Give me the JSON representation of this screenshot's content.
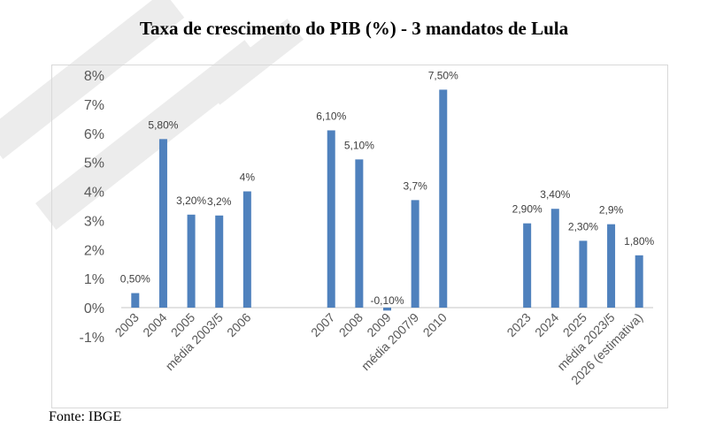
{
  "title": "Taxa de crescimento do PIB (%) - 3 mandatos de Lula",
  "source": "Fonte: IBGE",
  "chart_data": {
    "type": "bar",
    "title": "Taxa de crescimento do PIB (%) - 3 mandatos de Lula",
    "xlabel": "",
    "ylabel": "",
    "ylim": [
      -1,
      8
    ],
    "yticks": [
      "-1%",
      "0%",
      "1%",
      "2%",
      "3%",
      "4%",
      "5%",
      "6%",
      "7%",
      "8%"
    ],
    "grid": false,
    "color": "#4f81bd",
    "groups": [
      {
        "categories": [
          "2003",
          "2004",
          "2005",
          "média 2003/5",
          "2006"
        ],
        "values": [
          0.5,
          5.8,
          3.2,
          3.17,
          4.0
        ],
        "labels": [
          "0,50%",
          "5,80%",
          "3,20%",
          "3,2%",
          "4%"
        ]
      },
      {
        "categories": [
          "2007",
          "2008",
          "2009",
          "média 2007/9",
          "2010"
        ],
        "values": [
          6.1,
          5.1,
          -0.1,
          3.7,
          7.5
        ],
        "labels": [
          "6,10%",
          "5,10%",
          "-0,10%",
          "3,7%",
          "7,50%"
        ]
      },
      {
        "categories": [
          "2023",
          "2024",
          "2025",
          "média 2023/5",
          "2026 (estimativa)"
        ],
        "values": [
          2.9,
          3.4,
          2.3,
          2.87,
          1.8
        ],
        "labels": [
          "2,90%",
          "3,40%",
          "2,30%",
          "2,9%",
          "1,80%"
        ]
      }
    ]
  }
}
